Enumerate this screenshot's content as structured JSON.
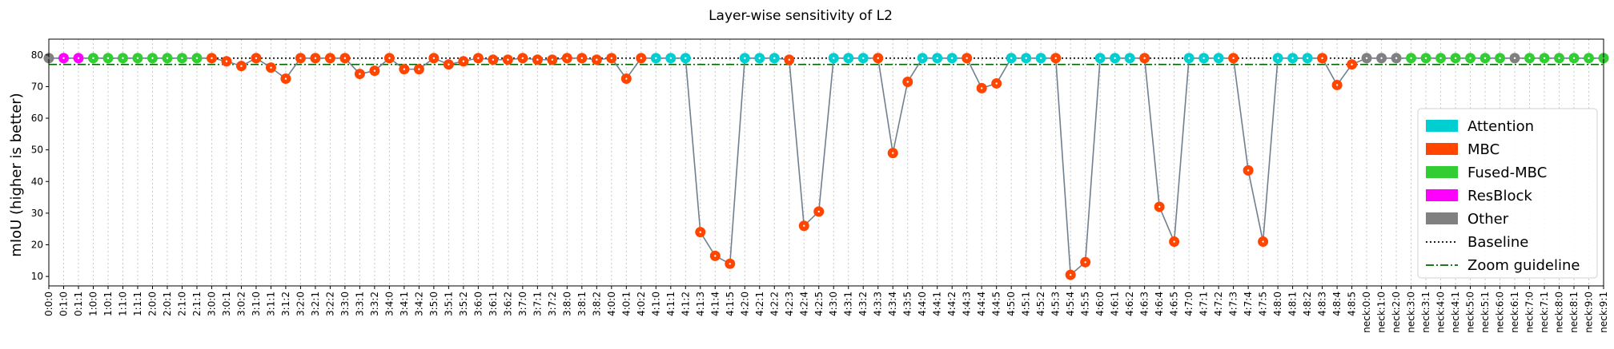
{
  "chart_data": {
    "type": "scatter",
    "title": "Layer-wise sensitivity of L2",
    "xlabel": "",
    "ylabel": "mIoU (higher is better)",
    "ylim": [
      7,
      85
    ],
    "yticks": [
      10,
      20,
      30,
      40,
      50,
      60,
      70,
      80
    ],
    "grid": "vertical dotted",
    "legend_position": "lower-right",
    "baseline": 79,
    "zoom_guideline": 77,
    "colors": {
      "Attention": "#00ced1",
      "MBC": "#ff4500",
      "Fused-MBC": "#32cd32",
      "ResBlock": "#ff00ff",
      "Other": "#808080",
      "line": "#708090",
      "baseline": "#000000",
      "zoom": "#006400"
    },
    "legend": [
      {
        "label": "Attention",
        "kind": "patch",
        "color": "#00ced1"
      },
      {
        "label": "MBC",
        "kind": "patch",
        "color": "#ff4500"
      },
      {
        "label": "Fused-MBC",
        "kind": "patch",
        "color": "#32cd32"
      },
      {
        "label": "ResBlock",
        "kind": "patch",
        "color": "#ff00ff"
      },
      {
        "label": "Other",
        "kind": "patch",
        "color": "#808080"
      },
      {
        "label": "Baseline",
        "kind": "dotted",
        "color": "#000000"
      },
      {
        "label": "Zoom guideline",
        "kind": "dashdot",
        "color": "#006400"
      }
    ],
    "points": [
      {
        "x": "0:0:0",
        "y": 79,
        "type": "Other"
      },
      {
        "x": "0:1:0",
        "y": 79,
        "type": "ResBlock"
      },
      {
        "x": "0:1:1",
        "y": 79,
        "type": "ResBlock"
      },
      {
        "x": "1:0:0",
        "y": 79,
        "type": "Fused-MBC"
      },
      {
        "x": "1:0:1",
        "y": 79,
        "type": "Fused-MBC"
      },
      {
        "x": "1:1:0",
        "y": 79,
        "type": "Fused-MBC"
      },
      {
        "x": "1:1:1",
        "y": 79,
        "type": "Fused-MBC"
      },
      {
        "x": "2:0:0",
        "y": 79,
        "type": "Fused-MBC"
      },
      {
        "x": "2:0:1",
        "y": 79,
        "type": "Fused-MBC"
      },
      {
        "x": "2:1:0",
        "y": 79,
        "type": "Fused-MBC"
      },
      {
        "x": "2:1:1",
        "y": 79,
        "type": "Fused-MBC"
      },
      {
        "x": "3:0:0",
        "y": 79,
        "type": "MBC"
      },
      {
        "x": "3:0:1",
        "y": 78,
        "type": "MBC"
      },
      {
        "x": "3:0:2",
        "y": 76.5,
        "type": "MBC"
      },
      {
        "x": "3:1:0",
        "y": 79,
        "type": "MBC"
      },
      {
        "x": "3:1:1",
        "y": 76,
        "type": "MBC"
      },
      {
        "x": "3:1:2",
        "y": 72.5,
        "type": "MBC"
      },
      {
        "x": "3:2:0",
        "y": 79,
        "type": "MBC"
      },
      {
        "x": "3:2:1",
        "y": 79,
        "type": "MBC"
      },
      {
        "x": "3:2:2",
        "y": 79,
        "type": "MBC"
      },
      {
        "x": "3:3:0",
        "y": 79,
        "type": "MBC"
      },
      {
        "x": "3:3:1",
        "y": 74,
        "type": "MBC"
      },
      {
        "x": "3:3:2",
        "y": 75,
        "type": "MBC"
      },
      {
        "x": "3:4:0",
        "y": 79,
        "type": "MBC"
      },
      {
        "x": "3:4:1",
        "y": 75.5,
        "type": "MBC"
      },
      {
        "x": "3:4:2",
        "y": 75.5,
        "type": "MBC"
      },
      {
        "x": "3:5:0",
        "y": 79,
        "type": "MBC"
      },
      {
        "x": "3:5:1",
        "y": 77,
        "type": "MBC"
      },
      {
        "x": "3:5:2",
        "y": 78,
        "type": "MBC"
      },
      {
        "x": "3:6:0",
        "y": 79,
        "type": "MBC"
      },
      {
        "x": "3:6:1",
        "y": 78.5,
        "type": "MBC"
      },
      {
        "x": "3:6:2",
        "y": 78.5,
        "type": "MBC"
      },
      {
        "x": "3:7:0",
        "y": 79,
        "type": "MBC"
      },
      {
        "x": "3:7:1",
        "y": 78.5,
        "type": "MBC"
      },
      {
        "x": "3:7:2",
        "y": 78.5,
        "type": "MBC"
      },
      {
        "x": "3:8:0",
        "y": 79,
        "type": "MBC"
      },
      {
        "x": "3:8:1",
        "y": 79,
        "type": "MBC"
      },
      {
        "x": "3:8:2",
        "y": 78.5,
        "type": "MBC"
      },
      {
        "x": "4:0:0",
        "y": 79,
        "type": "MBC"
      },
      {
        "x": "4:0:1",
        "y": 72.5,
        "type": "MBC"
      },
      {
        "x": "4:0:2",
        "y": 79,
        "type": "MBC"
      },
      {
        "x": "4:1:0",
        "y": 79,
        "type": "Attention"
      },
      {
        "x": "4:1:1",
        "y": 79,
        "type": "Attention"
      },
      {
        "x": "4:1:2",
        "y": 79,
        "type": "Attention"
      },
      {
        "x": "4:1:3",
        "y": 24,
        "type": "MBC"
      },
      {
        "x": "4:1:4",
        "y": 16.5,
        "type": "MBC"
      },
      {
        "x": "4:1:5",
        "y": 14,
        "type": "MBC"
      },
      {
        "x": "4:2:0",
        "y": 79,
        "type": "Attention"
      },
      {
        "x": "4:2:1",
        "y": 79,
        "type": "Attention"
      },
      {
        "x": "4:2:2",
        "y": 79,
        "type": "Attention"
      },
      {
        "x": "4:2:3",
        "y": 78.5,
        "type": "MBC"
      },
      {
        "x": "4:2:4",
        "y": 26,
        "type": "MBC"
      },
      {
        "x": "4:2:5",
        "y": 30.5,
        "type": "MBC"
      },
      {
        "x": "4:3:0",
        "y": 79,
        "type": "Attention"
      },
      {
        "x": "4:3:1",
        "y": 79,
        "type": "Attention"
      },
      {
        "x": "4:3:2",
        "y": 79,
        "type": "Attention"
      },
      {
        "x": "4:3:3",
        "y": 79,
        "type": "MBC"
      },
      {
        "x": "4:3:4",
        "y": 49,
        "type": "MBC"
      },
      {
        "x": "4:3:5",
        "y": 71.5,
        "type": "MBC"
      },
      {
        "x": "4:4:0",
        "y": 79,
        "type": "Attention"
      },
      {
        "x": "4:4:1",
        "y": 79,
        "type": "Attention"
      },
      {
        "x": "4:4:2",
        "y": 79,
        "type": "Attention"
      },
      {
        "x": "4:4:3",
        "y": 79,
        "type": "MBC"
      },
      {
        "x": "4:4:4",
        "y": 69.5,
        "type": "MBC"
      },
      {
        "x": "4:4:5",
        "y": 71,
        "type": "MBC"
      },
      {
        "x": "4:5:0",
        "y": 79,
        "type": "Attention"
      },
      {
        "x": "4:5:1",
        "y": 79,
        "type": "Attention"
      },
      {
        "x": "4:5:2",
        "y": 79,
        "type": "Attention"
      },
      {
        "x": "4:5:3",
        "y": 79,
        "type": "MBC"
      },
      {
        "x": "4:5:4",
        "y": 10.5,
        "type": "MBC"
      },
      {
        "x": "4:5:5",
        "y": 14.5,
        "type": "MBC"
      },
      {
        "x": "4:6:0",
        "y": 79,
        "type": "Attention"
      },
      {
        "x": "4:6:1",
        "y": 79,
        "type": "Attention"
      },
      {
        "x": "4:6:2",
        "y": 79,
        "type": "Attention"
      },
      {
        "x": "4:6:3",
        "y": 79,
        "type": "MBC"
      },
      {
        "x": "4:6:4",
        "y": 32,
        "type": "MBC"
      },
      {
        "x": "4:6:5",
        "y": 21,
        "type": "MBC"
      },
      {
        "x": "4:7:0",
        "y": 79,
        "type": "Attention"
      },
      {
        "x": "4:7:1",
        "y": 79,
        "type": "Attention"
      },
      {
        "x": "4:7:2",
        "y": 79,
        "type": "Attention"
      },
      {
        "x": "4:7:3",
        "y": 79,
        "type": "MBC"
      },
      {
        "x": "4:7:4",
        "y": 43.5,
        "type": "MBC"
      },
      {
        "x": "4:7:5",
        "y": 21,
        "type": "MBC"
      },
      {
        "x": "4:8:0",
        "y": 79,
        "type": "Attention"
      },
      {
        "x": "4:8:1",
        "y": 79,
        "type": "Attention"
      },
      {
        "x": "4:8:2",
        "y": 79,
        "type": "Attention"
      },
      {
        "x": "4:8:3",
        "y": 79,
        "type": "MBC"
      },
      {
        "x": "4:8:4",
        "y": 70.5,
        "type": "MBC"
      },
      {
        "x": "4:8:5",
        "y": 77,
        "type": "MBC"
      },
      {
        "x": "neck:0:0",
        "y": 79,
        "type": "Other"
      },
      {
        "x": "neck:1:0",
        "y": 79,
        "type": "Other"
      },
      {
        "x": "neck:2:0",
        "y": 79,
        "type": "Other"
      },
      {
        "x": "neck:3:0",
        "y": 79,
        "type": "Fused-MBC"
      },
      {
        "x": "neck:3:1",
        "y": 79,
        "type": "Fused-MBC"
      },
      {
        "x": "neck:4:0",
        "y": 79,
        "type": "Fused-MBC"
      },
      {
        "x": "neck:4:1",
        "y": 79,
        "type": "Fused-MBC"
      },
      {
        "x": "neck:5:0",
        "y": 79,
        "type": "Fused-MBC"
      },
      {
        "x": "neck:5:1",
        "y": 79,
        "type": "Fused-MBC"
      },
      {
        "x": "neck:6:0",
        "y": 79,
        "type": "Fused-MBC"
      },
      {
        "x": "neck:6:1",
        "y": 79,
        "type": "Other"
      },
      {
        "x": "neck:7:0",
        "y": 79,
        "type": "Fused-MBC"
      },
      {
        "x": "neck:7:1",
        "y": 79,
        "type": "Fused-MBC"
      },
      {
        "x": "neck:8:0",
        "y": 79,
        "type": "Fused-MBC"
      },
      {
        "x": "neck:8:1",
        "y": 79,
        "type": "Fused-MBC"
      },
      {
        "x": "neck:9:0",
        "y": 79,
        "type": "Fused-MBC"
      },
      {
        "x": "neck:9:1",
        "y": 79,
        "type": "Fused-MBC"
      }
    ]
  }
}
